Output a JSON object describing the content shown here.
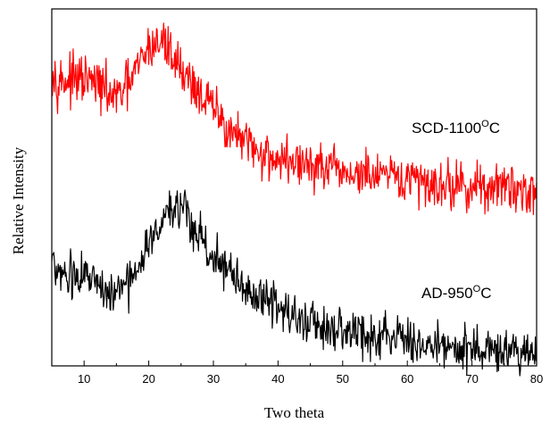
{
  "chart_data": {
    "type": "line",
    "xlabel": "Two theta",
    "ylabel": "Relative Intensity",
    "xlim": [
      5,
      80
    ],
    "ylim": [
      0,
      1
    ],
    "x_ticks": [
      "10",
      "20",
      "30",
      "40",
      "50",
      "60",
      "70",
      "80"
    ],
    "grid": false,
    "legend": "inline labels",
    "series": [
      {
        "name": "SCD-1100",
        "label_main": "SCD-1100",
        "label_sup": "O",
        "label_suffix": "C",
        "color": "#ff0000",
        "noise": 0.033,
        "x": [
          5,
          6,
          8,
          10,
          12,
          14,
          15,
          17,
          19,
          20,
          21,
          22,
          23,
          24,
          26,
          28,
          30,
          32,
          35,
          38,
          40,
          45,
          50,
          55,
          60,
          65,
          70,
          75,
          80
        ],
        "values": [
          0.83,
          0.8,
          0.8,
          0.8,
          0.79,
          0.76,
          0.75,
          0.79,
          0.86,
          0.89,
          0.9,
          0.91,
          0.89,
          0.86,
          0.81,
          0.76,
          0.72,
          0.67,
          0.62,
          0.59,
          0.58,
          0.56,
          0.54,
          0.53,
          0.52,
          0.51,
          0.5,
          0.5,
          0.49
        ]
      },
      {
        "name": "AD-950",
        "label_main": "AD-950",
        "label_sup": "O",
        "label_suffix": "C",
        "color": "#000000",
        "noise": 0.03,
        "x": [
          5,
          6,
          8,
          10,
          12,
          14,
          15,
          17,
          19,
          20,
          21,
          22,
          23,
          24,
          25,
          26,
          28,
          30,
          32,
          35,
          38,
          40,
          45,
          50,
          55,
          60,
          65,
          70,
          75,
          80
        ],
        "values": [
          0.3,
          0.26,
          0.26,
          0.25,
          0.24,
          0.21,
          0.2,
          0.23,
          0.29,
          0.34,
          0.38,
          0.41,
          0.43,
          0.44,
          0.43,
          0.41,
          0.36,
          0.31,
          0.27,
          0.22,
          0.18,
          0.16,
          0.12,
          0.1,
          0.08,
          0.07,
          0.06,
          0.05,
          0.04,
          0.03
        ]
      }
    ]
  }
}
